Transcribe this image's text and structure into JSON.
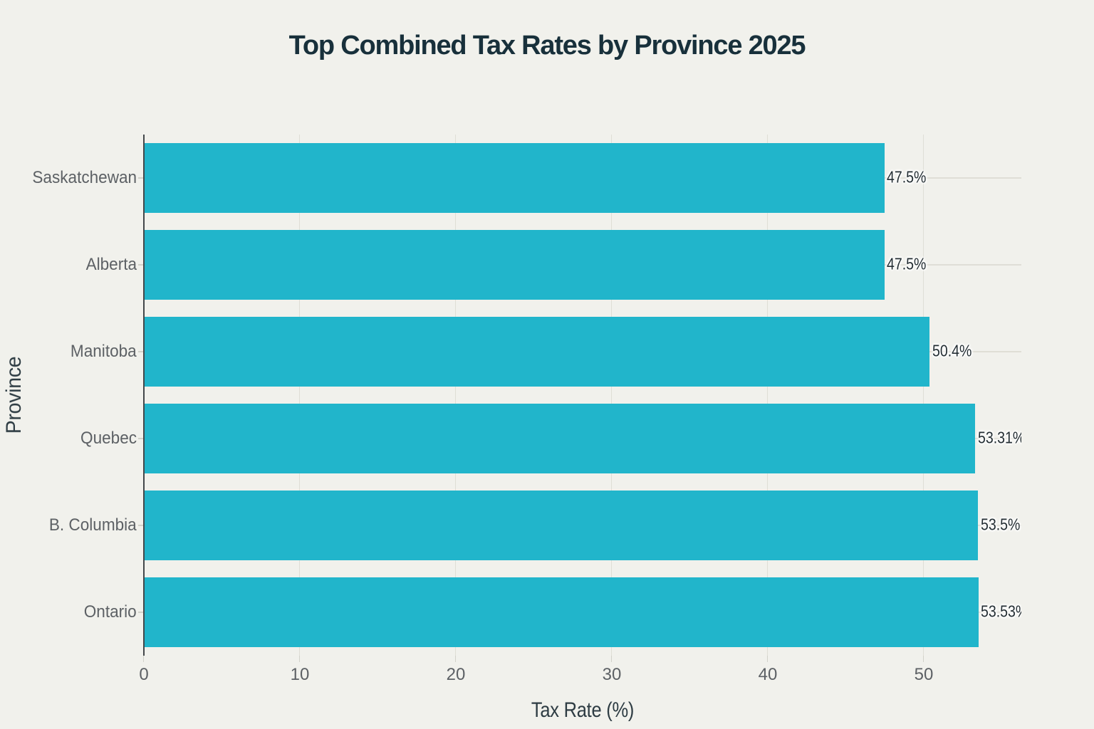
{
  "chart_data": {
    "type": "bar",
    "orientation": "horizontal",
    "title": "Top Combined Tax Rates by Province 2025",
    "xlabel": "Tax Rate (%)",
    "ylabel": "Province",
    "categories": [
      "Saskatchewan",
      "Alberta",
      "Manitoba",
      "Quebec",
      "B. Columbia",
      "Ontario"
    ],
    "values": [
      47.5,
      47.5,
      50.4,
      53.31,
      53.5,
      53.53
    ],
    "value_labels": [
      "47.5%",
      "47.5%",
      "50.4%",
      "53.31%",
      "53.5%",
      "53.53%"
    ],
    "x_ticks": [
      0,
      10,
      20,
      30,
      40,
      50
    ],
    "xlim": [
      0,
      56.3
    ],
    "grid": true,
    "legend": false,
    "colors": {
      "background": "#f1f1ec",
      "bar": "#21b5cb",
      "title": "#18303b",
      "axis_title": "#2e3c43",
      "tick_label": "#5d6165",
      "value_label": "#242e33",
      "gridline": "#dfded6",
      "axis_line": "#43474a",
      "tick_mark": "#d2d2ca"
    }
  }
}
